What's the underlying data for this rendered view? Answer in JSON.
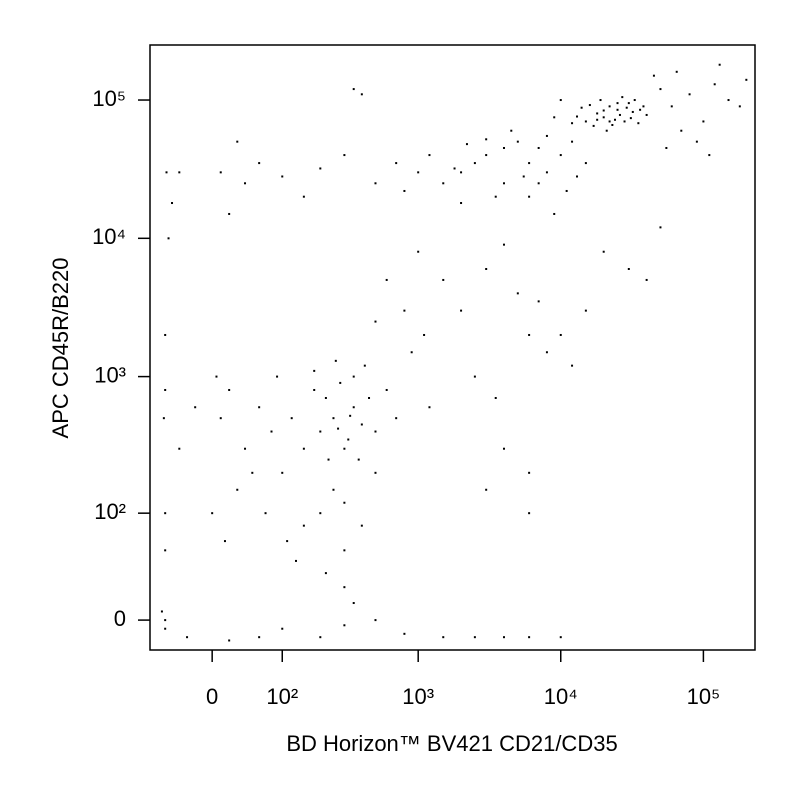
{
  "chart_data": {
    "type": "scatter",
    "x_label": "BD Horizon™ BV421 CD21/CD35",
    "y_label": "APC CD45R/B220",
    "xscale": "biexponential",
    "yscale": "biexponential",
    "color": "#000000",
    "xlim": [
      -85,
      230000
    ],
    "ylim": [
      -18,
      250000
    ],
    "xticks": [
      0,
      {
        "value": 100,
        "label": "10²"
      },
      {
        "value": 1000,
        "label": "10³"
      },
      {
        "value": 10000,
        "label": "10⁴"
      },
      {
        "value": 100000,
        "label": "10⁵"
      }
    ],
    "yticks": [
      0,
      {
        "value": 100,
        "label": "10²"
      },
      {
        "value": 1000,
        "label": "10³"
      },
      {
        "value": 10000,
        "label": "10⁴"
      },
      {
        "value": 100000,
        "label": "10⁵"
      }
    ],
    "x": [
      15000,
      18000,
      20000,
      22000,
      25000,
      28000,
      30000,
      17000,
      19000,
      21000,
      24000,
      26000,
      32000,
      35000,
      14000,
      16000,
      23000,
      27000,
      29000,
      31000,
      13000,
      12000,
      38000,
      40000,
      20000,
      22000,
      25000,
      18000,
      33000,
      36000,
      50000,
      60000,
      80000,
      100000,
      120000,
      150000,
      45000,
      70000,
      90000,
      200000,
      110000,
      55000,
      65000,
      9000,
      8000,
      10000,
      180000,
      130000,
      2000,
      3000,
      4000,
      5000,
      6000,
      7000,
      3500,
      2500,
      1500,
      1200,
      4500,
      8000,
      10000,
      12000,
      15000,
      6000,
      9000,
      2000,
      1000,
      800,
      5500,
      3000,
      4000,
      7000,
      11000,
      13000,
      2200,
      1800,
      10,
      20,
      40,
      60,
      100,
      150,
      300,
      500,
      700,
      -40,
      -50,
      30,
      400,
      350,
      200,
      1000,
      1500,
      2000,
      3000,
      4000,
      5000,
      6000,
      8000,
      7000,
      2500,
      1200,
      3500,
      20000,
      30000,
      15000,
      10000,
      4000,
      6000,
      6000,
      3000,
      800,
      600,
      500,
      900,
      1100,
      12000,
      40000,
      50000,
      200,
      250,
      300,
      350,
      400,
      180,
      220,
      280,
      320,
      380,
      150,
      120,
      100,
      80,
      60,
      40,
      30,
      20,
      10,
      250,
      300,
      200,
      150,
      350,
      420,
      450,
      500,
      600,
      700,
      260,
      180,
      90,
      50,
      70,
      110,
      130,
      300,
      400,
      500,
      230,
      270,
      330,
      -20,
      -40,
      -60,
      0,
      5,
      15,
      220,
      300,
      350,
      100,
      300,
      500,
      800,
      1500,
      2500,
      4000,
      6000,
      200,
      60,
      20,
      -30,
      10000,
      -60,
      -60,
      -55,
      -58,
      -62,
      -60,
      -65,
      -60,
      -60
    ],
    "values": [
      70000,
      80000,
      75000,
      90000,
      85000,
      70000,
      95000,
      65000,
      100000,
      60000,
      72000,
      78000,
      82000,
      68000,
      88000,
      92000,
      66000,
      105000,
      88000,
      74000,
      76000,
      68000,
      90000,
      78000,
      84000,
      70000,
      95000,
      72000,
      100000,
      85000,
      120000,
      90000,
      110000,
      70000,
      130000,
      100000,
      150000,
      60000,
      50000,
      140000,
      40000,
      45000,
      160000,
      75000,
      55000,
      100000,
      90000,
      180000,
      30000,
      40000,
      25000,
      50000,
      35000,
      45000,
      20000,
      35000,
      25000,
      40000,
      60000,
      30000,
      40000,
      50000,
      35000,
      20000,
      15000,
      18000,
      30000,
      22000,
      28000,
      52000,
      45000,
      25000,
      22000,
      28000,
      48000,
      32000,
      30000,
      15000,
      25000,
      35000,
      28000,
      20000,
      40000,
      25000,
      35000,
      30000,
      18000,
      50000,
      110000,
      120000,
      32000,
      8000,
      5000,
      3000,
      6000,
      9000,
      4000,
      2000,
      1500,
      3500,
      1000,
      600,
      700,
      8000,
      6000,
      3000,
      2000,
      300,
      200,
      100,
      150,
      3000,
      5000,
      2500,
      1500,
      2000,
      1200,
      5000,
      12000,
      400,
      500,
      300,
      600,
      450,
      800,
      700,
      900,
      350,
      250,
      300,
      500,
      200,
      400,
      600,
      300,
      150,
      800,
      500,
      150,
      120,
      100,
      80,
      1000,
      1200,
      700,
      400,
      800,
      500,
      1300,
      1100,
      1000,
      200,
      100,
      60,
      40,
      50,
      80,
      200,
      250,
      420,
      520,
      600,
      300,
      800,
      100,
      1000,
      60,
      30,
      20,
      10,
      -5,
      -3,
      0,
      -8,
      -10,
      -10,
      -10,
      -10,
      -10,
      -10,
      -12,
      -10,
      -10,
      100,
      2000,
      10000,
      30000,
      500,
      50,
      5,
      0,
      -5
    ]
  }
}
